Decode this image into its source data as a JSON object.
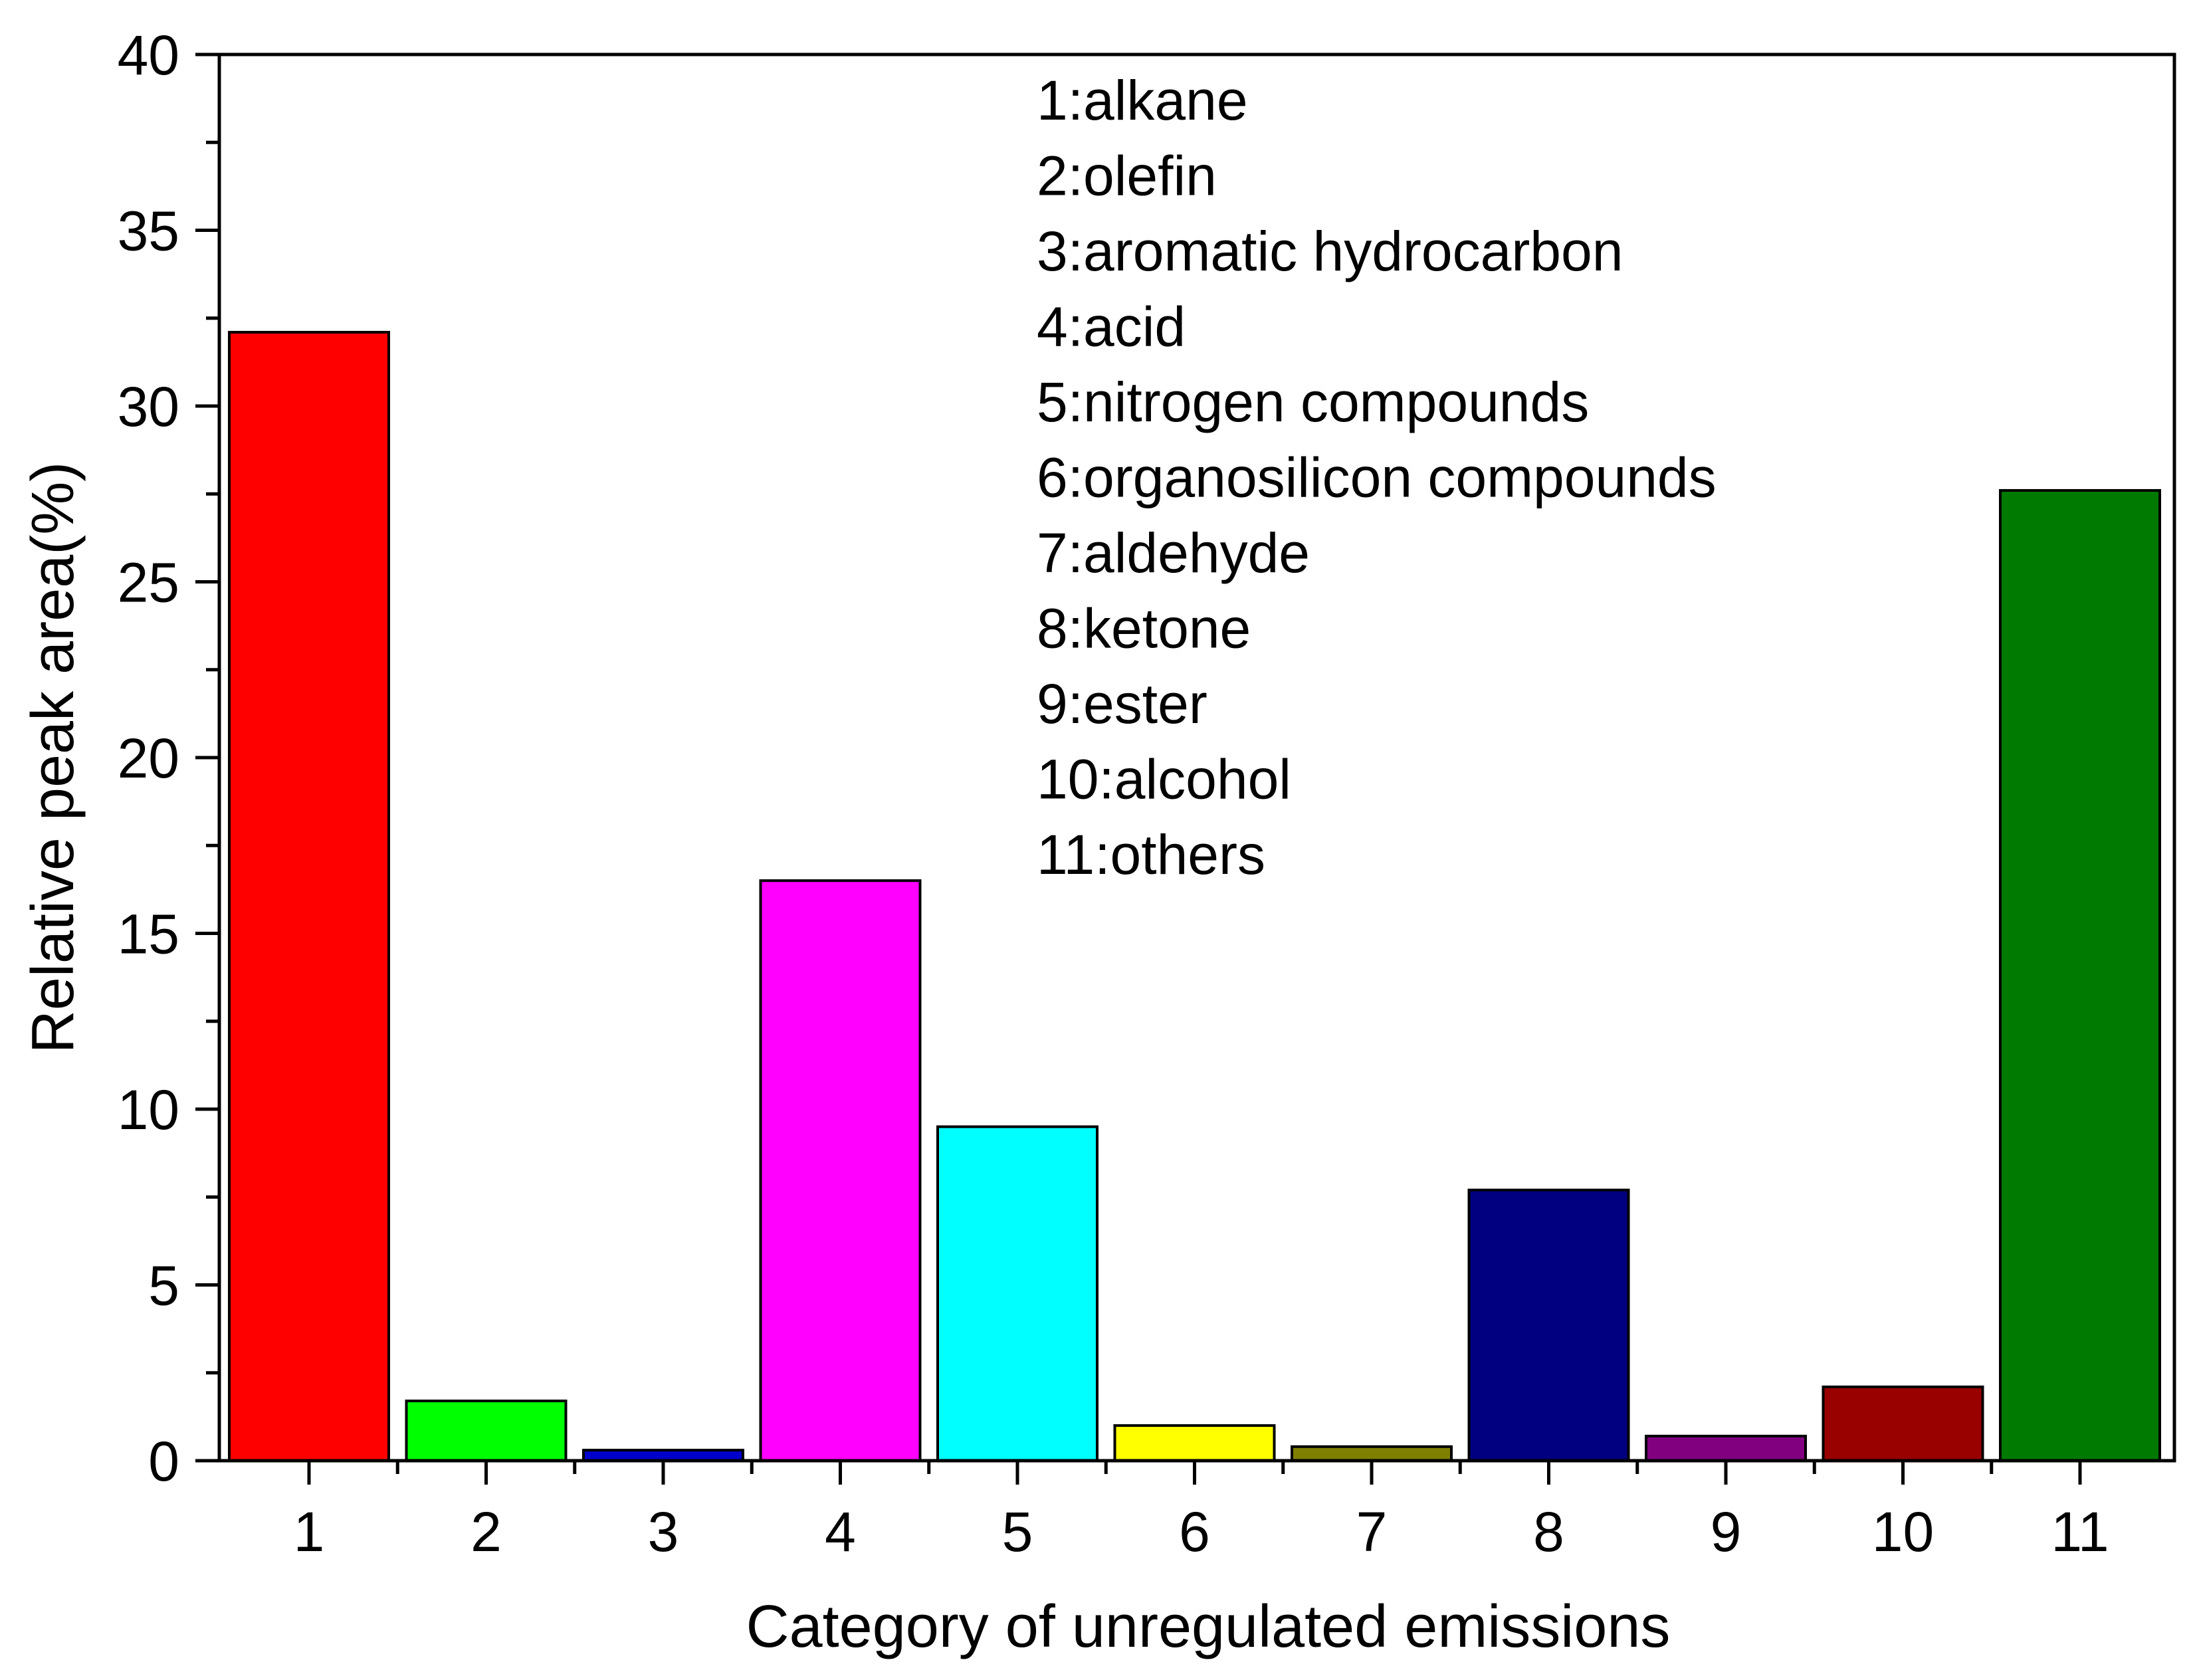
{
  "chart_data": {
    "type": "bar",
    "title": "",
    "xlabel": "Category of unregulated emissions",
    "ylabel": "Relative peak area(%)",
    "ylim": [
      0,
      40
    ],
    "yticks": [
      0,
      5,
      10,
      15,
      20,
      25,
      30,
      35,
      40
    ],
    "grid": false,
    "categories": [
      "1",
      "2",
      "3",
      "4",
      "5",
      "6",
      "7",
      "8",
      "9",
      "10",
      "11"
    ],
    "values": [
      32.1,
      1.7,
      0.3,
      16.5,
      9.5,
      1.0,
      0.4,
      7.7,
      0.7,
      2.1,
      27.6
    ],
    "colors": [
      "#ff0000",
      "#00ff00",
      "#0000cc",
      "#ff00ff",
      "#00ffff",
      "#ffff00",
      "#808000",
      "#000080",
      "#800080",
      "#990000",
      "#007a00"
    ],
    "annotations": [
      "1:alkane",
      "2:olefin",
      "3:aromatic hydrocarbon",
      "4:acid",
      "5:nitrogen compounds",
      "6:organosilicon compounds",
      "7:aldehyde",
      "8:ketone",
      "9:ester",
      "10:alcohol",
      "11:others"
    ]
  }
}
